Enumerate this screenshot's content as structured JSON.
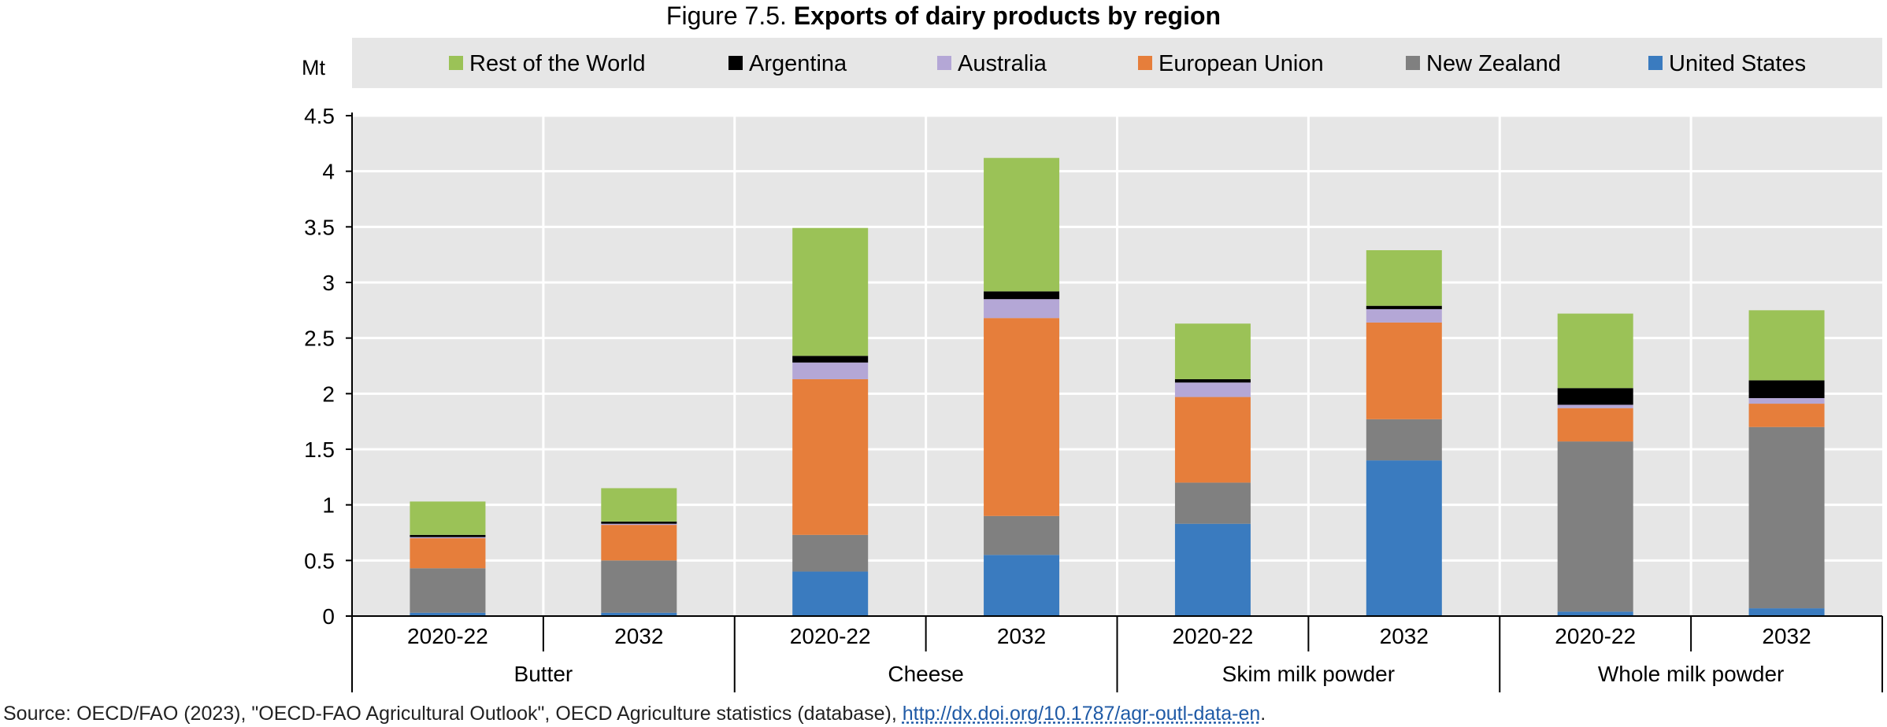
{
  "title": {
    "prefix": "Figure 7.5.",
    "main": "Exports of dairy products by region"
  },
  "source": {
    "text": "Source: OECD/FAO (2023), \"OECD-FAO Agricultural Outlook\", OECD Agriculture statistics (database),",
    "link": "http://dx.doi.org/10.1787/agr-outl-data-en",
    "end": "."
  },
  "chart_data": {
    "type": "bar",
    "stacked": true,
    "unit_label": "Mt",
    "ylim": [
      0,
      4.5
    ],
    "yticks": [
      0,
      0.5,
      1,
      1.5,
      2,
      2.5,
      3,
      3.5,
      4,
      4.5
    ],
    "ytick_labels": [
      "0",
      "0.5",
      "1",
      "1.5",
      "2",
      "2.5",
      "3",
      "3.5",
      "4",
      "4.5"
    ],
    "grid": true,
    "legend_position": "top",
    "groups": [
      "Butter",
      "Cheese",
      "Skim milk powder",
      "Whole milk powder"
    ],
    "categories": [
      "2020-22",
      "2032",
      "2020-22",
      "2032",
      "2020-22",
      "2032",
      "2020-22",
      "2032"
    ],
    "series": [
      {
        "name": "United States",
        "color": "#3a7bbf",
        "values": [
          0.03,
          0.03,
          0.4,
          0.55,
          0.83,
          1.4,
          0.04,
          0.07
        ]
      },
      {
        "name": "New Zealand",
        "color": "#808080",
        "values": [
          0.4,
          0.47,
          0.33,
          0.35,
          0.37,
          0.37,
          1.53,
          1.63
        ]
      },
      {
        "name": "European Union",
        "color": "#e67e3b",
        "values": [
          0.27,
          0.32,
          1.4,
          1.78,
          0.77,
          0.87,
          0.3,
          0.21
        ]
      },
      {
        "name": "Australia",
        "color": "#b4a7d6",
        "values": [
          0.01,
          0.01,
          0.15,
          0.17,
          0.13,
          0.12,
          0.03,
          0.05
        ]
      },
      {
        "name": "Argentina",
        "color": "#000000",
        "values": [
          0.02,
          0.02,
          0.06,
          0.07,
          0.03,
          0.03,
          0.15,
          0.16
        ]
      },
      {
        "name": "Rest of the World",
        "color": "#9bc257",
        "values": [
          0.3,
          0.3,
          1.15,
          1.2,
          0.5,
          0.5,
          0.67,
          0.63
        ]
      }
    ],
    "legend_order": [
      "Rest of the World",
      "Argentina",
      "Australia",
      "European Union",
      "New Zealand",
      "United States"
    ]
  }
}
